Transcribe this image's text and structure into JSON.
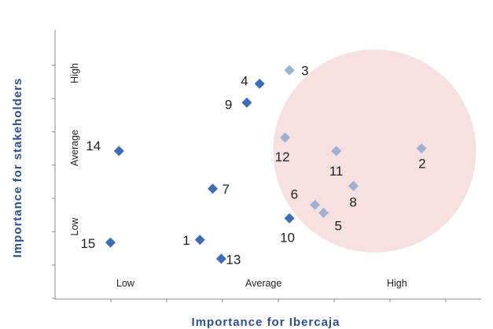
{
  "chart_data": {
    "type": "scatter",
    "xlabel": "Importance for Ibercaja",
    "ylabel": "Importance for stakeholders",
    "x_levels": [
      "Low",
      "Average",
      "High"
    ],
    "y_levels": [
      "Low",
      "Average",
      "High"
    ],
    "xlim": [
      0,
      10
    ],
    "ylim": [
      0,
      10
    ],
    "grid": false,
    "highlight_region": {
      "shape": "circle",
      "color": "#f6dede",
      "cx": 7.5,
      "cy": 5.5,
      "r": 2.8
    },
    "colors": {
      "primary": "#3e6db5",
      "highlighted": "#9fb0d0",
      "axis": "#888888"
    },
    "points": [
      {
        "label": "1",
        "x": 3.4,
        "y": 2.2,
        "highlighted": false
      },
      {
        "label": "2",
        "x": 8.6,
        "y": 5.6,
        "highlighted": true
      },
      {
        "label": "3",
        "x": 5.5,
        "y": 8.5,
        "highlighted": true
      },
      {
        "label": "4",
        "x": 4.8,
        "y": 8.0,
        "highlighted": false
      },
      {
        "label": "5",
        "x": 6.3,
        "y": 3.2,
        "highlighted": true
      },
      {
        "label": "6",
        "x": 6.1,
        "y": 3.5,
        "highlighted": true
      },
      {
        "label": "7",
        "x": 3.7,
        "y": 4.1,
        "highlighted": false
      },
      {
        "label": "8",
        "x": 7.0,
        "y": 4.2,
        "highlighted": true
      },
      {
        "label": "9",
        "x": 4.5,
        "y": 7.3,
        "highlighted": false
      },
      {
        "label": "10",
        "x": 5.5,
        "y": 3.0,
        "highlighted": false
      },
      {
        "label": "11",
        "x": 6.6,
        "y": 5.5,
        "highlighted": true
      },
      {
        "label": "12",
        "x": 5.4,
        "y": 6.0,
        "highlighted": true
      },
      {
        "label": "13",
        "x": 3.9,
        "y": 1.5,
        "highlighted": false
      },
      {
        "label": "14",
        "x": 1.5,
        "y": 5.5,
        "highlighted": false
      },
      {
        "label": "15",
        "x": 1.3,
        "y": 2.1,
        "highlighted": false
      }
    ]
  }
}
